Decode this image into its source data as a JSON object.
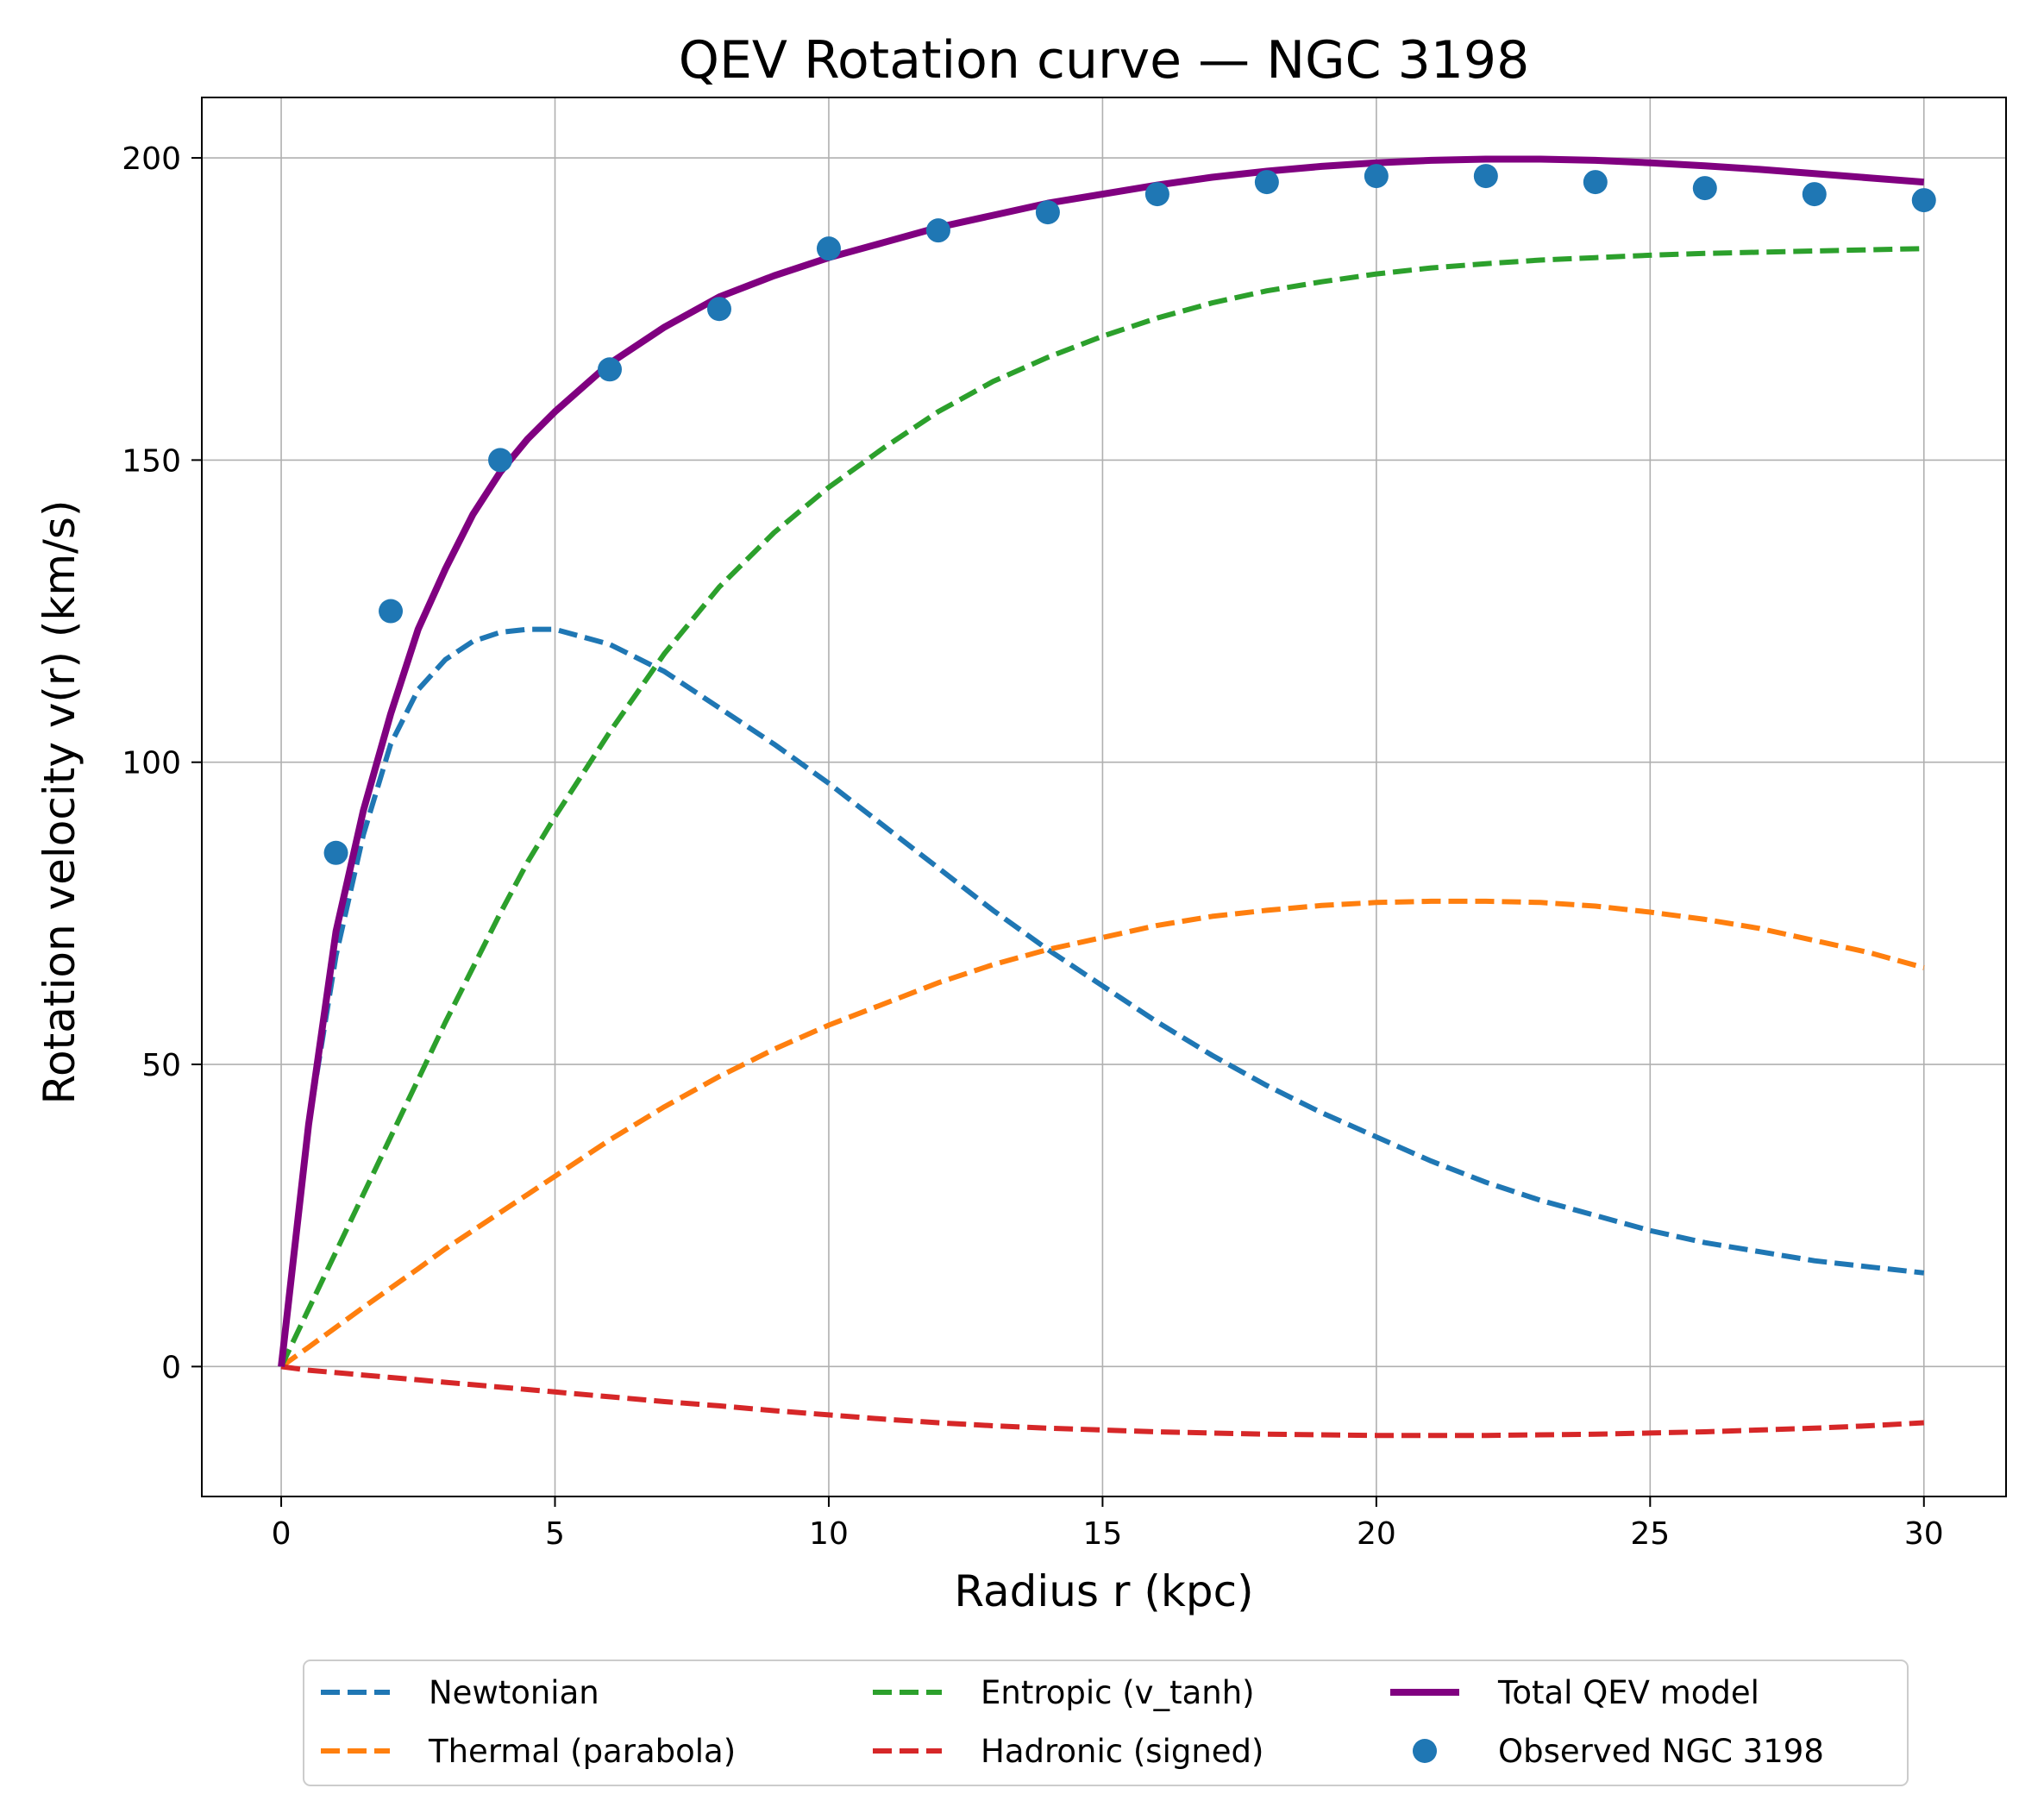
{
  "chart_data": {
    "type": "line",
    "title": "QEV Rotation curve — NGC 3198",
    "xlabel": "Radius r (kpc)",
    "ylabel": "Rotation velocity v(r) (km/s)",
    "xlim": [
      -1.45,
      31.5
    ],
    "ylim": [
      -21.5,
      210
    ],
    "xticks": [
      0,
      5,
      10,
      15,
      20,
      25,
      30
    ],
    "yticks": [
      0,
      50,
      100,
      150,
      200
    ],
    "grid": true,
    "legend_position": "bottom-center",
    "x": [
      0,
      0.5,
      1,
      1.5,
      2,
      2.5,
      3,
      3.5,
      4,
      4.5,
      5,
      6,
      7,
      8,
      9,
      10,
      11,
      12,
      13,
      14,
      15,
      16,
      17,
      18,
      19,
      20,
      21,
      22,
      23,
      24,
      25,
      26,
      27,
      28,
      29,
      30
    ],
    "series": [
      {
        "name": "Newtonian",
        "kind": "line",
        "dash": true,
        "color": "#1f77b4",
        "values": [
          0,
          40,
          68,
          88,
          103,
          112,
          117,
          120,
          121.5,
          122,
          122,
          119.5,
          115,
          109,
          103,
          96.5,
          89.5,
          82.5,
          75.5,
          69,
          63,
          57,
          51.5,
          46.5,
          42,
          38,
          34,
          30.5,
          27.5,
          25,
          22.5,
          20.5,
          19,
          17.5,
          16.5,
          15.5
        ]
      },
      {
        "name": "Thermal (parabola)",
        "kind": "line",
        "dash": true,
        "color": "#ff7f0e",
        "values": [
          0,
          3.2,
          6.5,
          9.8,
          13,
          16.2,
          19.5,
          22.5,
          25.5,
          28.5,
          31.5,
          37.5,
          43,
          48,
          52.5,
          56.5,
          60,
          63.5,
          66.5,
          69,
          71,
          73,
          74.5,
          75.5,
          76.3,
          76.8,
          77,
          77,
          76.8,
          76.2,
          75.2,
          74,
          72.5,
          70.5,
          68.5,
          66
        ]
      },
      {
        "name": "Entropic (v_tanh)",
        "kind": "line",
        "dash": true,
        "color": "#2ca02c",
        "values": [
          0,
          9.5,
          19,
          28.5,
          38,
          47.5,
          57,
          66,
          75,
          83.5,
          91,
          105,
          118,
          129,
          138,
          145.5,
          152,
          158,
          163,
          167,
          170.5,
          173.5,
          176,
          178,
          179.5,
          180.8,
          181.8,
          182.5,
          183.1,
          183.5,
          183.9,
          184.2,
          184.4,
          184.6,
          184.8,
          185
        ]
      },
      {
        "name": "Hadronic (signed)",
        "kind": "line",
        "dash": true,
        "color": "#d62728",
        "values": [
          0,
          -0.6,
          -1,
          -1.4,
          -1.8,
          -2.2,
          -2.6,
          -3,
          -3.4,
          -3.8,
          -4.2,
          -5,
          -5.8,
          -6.5,
          -7.3,
          -8,
          -8.7,
          -9.3,
          -9.8,
          -10.2,
          -10.5,
          -10.8,
          -11,
          -11.2,
          -11.3,
          -11.4,
          -11.4,
          -11.4,
          -11.3,
          -11.2,
          -11,
          -10.8,
          -10.5,
          -10.2,
          -9.8,
          -9.3
        ]
      },
      {
        "name": "Total QEV model",
        "kind": "line",
        "dash": false,
        "color": "#800080",
        "values": [
          0,
          40,
          72,
          92,
          108,
          122,
          132,
          141,
          148,
          153.5,
          158,
          166,
          172,
          177,
          180.5,
          183.5,
          186,
          188.5,
          190.5,
          192.5,
          194,
          195.5,
          196.8,
          197.8,
          198.6,
          199.2,
          199.6,
          199.8,
          199.8,
          199.6,
          199.2,
          198.7,
          198.1,
          197.4,
          196.7,
          196
        ]
      }
    ],
    "observed": {
      "name": "Observed NGC 3198",
      "kind": "scatter",
      "color": "#1f77b4",
      "x": [
        1,
        2,
        4,
        6,
        8,
        10,
        12,
        14,
        16,
        18,
        20,
        22,
        24,
        26,
        28,
        30
      ],
      "y": [
        85,
        125,
        150,
        165,
        175,
        185,
        188,
        191,
        194,
        196,
        197,
        197,
        196,
        195,
        194,
        193
      ]
    },
    "legend_order": [
      "Newtonian",
      "Thermal (parabola)",
      "Entropic (v_tanh)",
      "Hadronic (signed)",
      "Total QEV model",
      "Observed NGC 3198"
    ]
  }
}
